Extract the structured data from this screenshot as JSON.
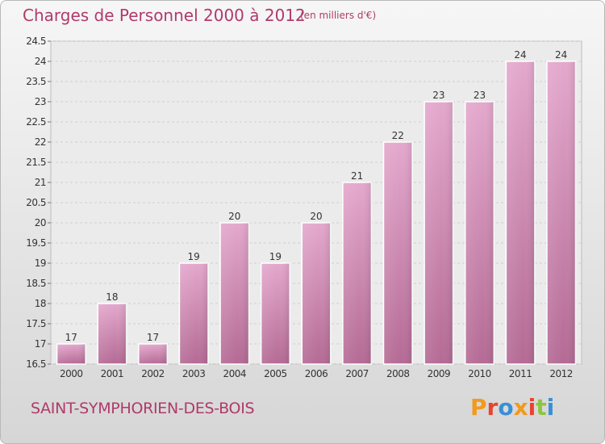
{
  "chart_data": {
    "type": "bar",
    "title": "Charges de Personnel 2000 à 2012",
    "subtitle": "(en milliers d'€)",
    "categories": [
      "2000",
      "2001",
      "2002",
      "2003",
      "2004",
      "2005",
      "2006",
      "2007",
      "2008",
      "2009",
      "2010",
      "2011",
      "2012"
    ],
    "values": [
      17,
      18,
      17,
      19,
      20,
      19,
      20,
      21,
      22,
      23,
      23,
      24,
      24
    ],
    "ylim": [
      16.5,
      24.5
    ],
    "yticks": [
      "16.5",
      "17",
      "17.5",
      "18",
      "18.5",
      "19",
      "19.5",
      "20",
      "20.5",
      "21",
      "21.5",
      "22",
      "22.5",
      "23",
      "23.5",
      "24",
      "24.5"
    ],
    "grid": true,
    "bar_color": "#d58fb8",
    "label_color": "#b03a6a"
  },
  "footer": {
    "commune": "SAINT-SYMPHORIEN-DES-BOIS",
    "logo_text": "Proxiti",
    "logo_colors": [
      "#f29a1b",
      "#e8432e",
      "#3a8fd6",
      "#f29a1b",
      "#e8432e",
      "#8cc63f",
      "#3a8fd6"
    ]
  }
}
